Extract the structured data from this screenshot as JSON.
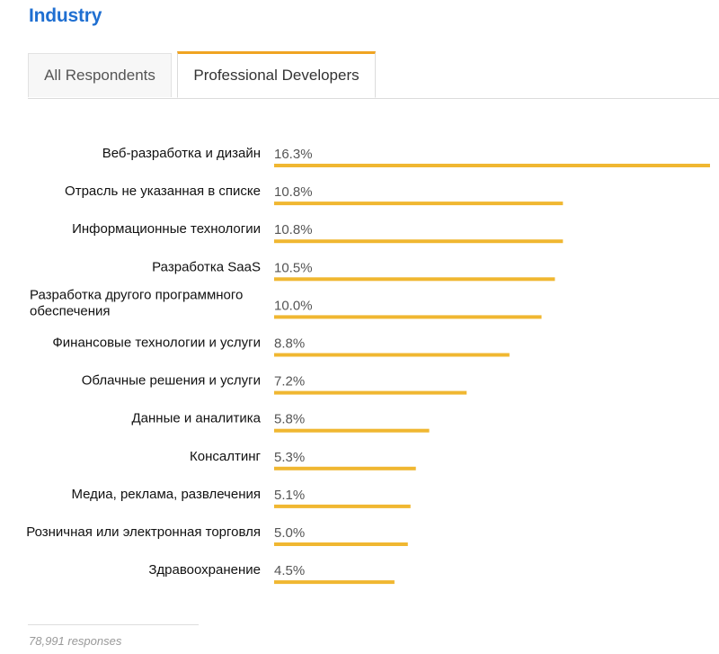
{
  "section": {
    "title": "Industry"
  },
  "tabs": [
    {
      "label": "All Respondents",
      "active": false
    },
    {
      "label": "Professional Developers",
      "active": true
    }
  ],
  "colors": {
    "title": "#1f6fd1",
    "bar": "#f0b731",
    "active_tab_accent": "#f0a422"
  },
  "chart_data": {
    "type": "bar",
    "orientation": "horizontal",
    "unit": "%",
    "categories": [
      "Веб-разработка и дизайн",
      "Отрасль не указанная в списке",
      "Информационные технологии",
      "Разработка SaaS",
      "Разработка другого программного обеспечения",
      "Финансовые технологии и услуги",
      "Облачные решения и услуги",
      "Данные и аналитика",
      "Консалтинг",
      "Медиа, реклама, развлечения",
      "Розничная или электронная торговля",
      "Здравоохранение"
    ],
    "category_lines": [
      [
        "Веб-разработка и дизайн"
      ],
      [
        "Отрасль не указанная в списке"
      ],
      [
        "Информационные технологии"
      ],
      [
        "Разработка SaaS"
      ],
      [
        "Разработка другого программного",
        "обеспечения"
      ],
      [
        "Финансовые технологии и услуги"
      ],
      [
        "Облачные решения и услуги"
      ],
      [
        "Данные и аналитика"
      ],
      [
        "Консалтинг"
      ],
      [
        "Медиа, реклама, развлечения"
      ],
      [
        "Розничная или электронная торговля"
      ],
      [
        "Здравоохранение"
      ]
    ],
    "values": [
      16.3,
      10.8,
      10.8,
      10.5,
      10.0,
      8.8,
      7.2,
      5.8,
      5.3,
      5.1,
      5.0,
      4.5
    ],
    "value_labels": [
      "16.3%",
      "10.8%",
      "10.8%",
      "10.5%",
      "10.0%",
      "8.8%",
      "7.2%",
      "5.8%",
      "5.3%",
      "5.1%",
      "5.0%",
      "4.5%"
    ],
    "xlim": [
      0,
      16.3
    ],
    "title": "",
    "xlabel": "",
    "ylabel": ""
  },
  "footer": {
    "responses": "78,991 responses"
  }
}
